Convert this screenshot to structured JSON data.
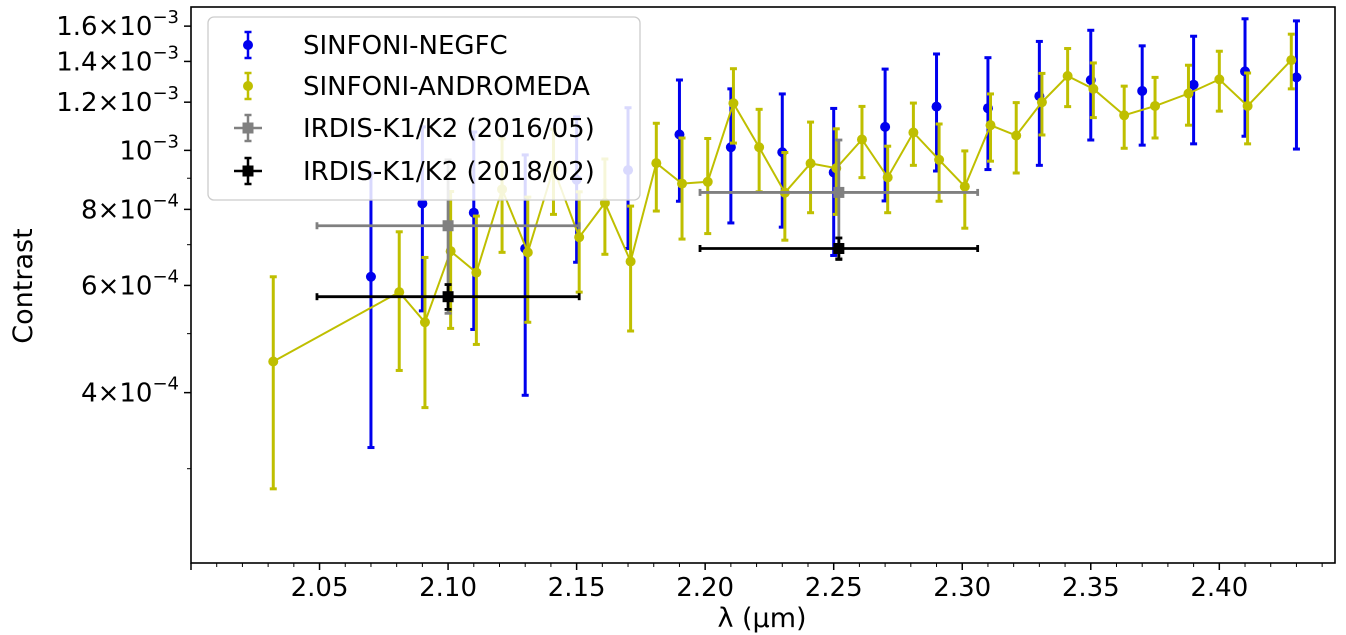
{
  "chart_data": {
    "type": "scatter",
    "xlabel": "λ (μm)",
    "ylabel": "Contrast",
    "xlim": [
      2.0,
      2.445
    ],
    "ylim": [
      0.00021,
      0.00172
    ],
    "grid": false,
    "legend_position": "top-left",
    "x_ticks": [
      {
        "value": 2.05,
        "label": "2.05"
      },
      {
        "value": 2.1,
        "label": "2.10"
      },
      {
        "value": 2.15,
        "label": "2.15"
      },
      {
        "value": 2.2,
        "label": "2.20"
      },
      {
        "value": 2.25,
        "label": "2.25"
      },
      {
        "value": 2.3,
        "label": "2.30"
      },
      {
        "value": 2.35,
        "label": "2.35"
      },
      {
        "value": 2.4,
        "label": "2.40"
      }
    ],
    "y_ticks": [
      {
        "value": 0.0004,
        "base": "4×10",
        "exp": "−4"
      },
      {
        "value": 0.0006,
        "base": "6×10",
        "exp": "−4"
      },
      {
        "value": 0.0008,
        "base": "8×10",
        "exp": "−4"
      },
      {
        "value": 0.001,
        "base": "10",
        "exp": "−3"
      },
      {
        "value": 0.0012,
        "base": "1.2×10",
        "exp": "−3"
      },
      {
        "value": 0.0014,
        "base": "1.4×10",
        "exp": "−3"
      },
      {
        "value": 0.0016,
        "base": "1.6×10",
        "exp": "−3"
      }
    ],
    "series": [
      {
        "name": "SINFONI-NEGFC",
        "color": "#0000ee",
        "marker": "circle",
        "line": false,
        "points": [
          {
            "x": 2.07,
            "y": 0.00062,
            "lo": 0.000325,
            "hi": 0.000918
          },
          {
            "x": 2.09,
            "y": 0.000818,
            "lo": 0.000545,
            "hi": 0.001093
          },
          {
            "x": 2.11,
            "y": 0.00079,
            "lo": 0.000508,
            "hi": 0.001072
          },
          {
            "x": 2.13,
            "y": 0.00069,
            "lo": 0.000396,
            "hi": 0.000983
          },
          {
            "x": 2.15,
            "y": 0.000895,
            "lo": 0.000655,
            "hi": 0.001135
          },
          {
            "x": 2.17,
            "y": 0.000928,
            "lo": 0.00069,
            "hi": 0.001175
          },
          {
            "x": 2.19,
            "y": 0.001062,
            "lo": 0.000825,
            "hi": 0.001305
          },
          {
            "x": 2.21,
            "y": 0.001012,
            "lo": 0.00076,
            "hi": 0.001262
          },
          {
            "x": 2.23,
            "y": 0.000993,
            "lo": 0.000748,
            "hi": 0.001238
          },
          {
            "x": 2.25,
            "y": 0.00092,
            "lo": 0.000672,
            "hi": 0.001172
          },
          {
            "x": 2.27,
            "y": 0.001093,
            "lo": 0.000826,
            "hi": 0.00136
          },
          {
            "x": 2.29,
            "y": 0.00118,
            "lo": 0.000925,
            "hi": 0.00144
          },
          {
            "x": 2.31,
            "y": 0.001173,
            "lo": 0.00093,
            "hi": 0.00142
          },
          {
            "x": 2.33,
            "y": 0.001228,
            "lo": 0.000945,
            "hi": 0.00151
          },
          {
            "x": 2.35,
            "y": 0.001305,
            "lo": 0.00104,
            "hi": 0.001575
          },
          {
            "x": 2.37,
            "y": 0.001252,
            "lo": 0.00102,
            "hi": 0.001485
          },
          {
            "x": 2.39,
            "y": 0.001282,
            "lo": 0.001025,
            "hi": 0.00154
          },
          {
            "x": 2.41,
            "y": 0.001348,
            "lo": 0.001055,
            "hi": 0.001645
          },
          {
            "x": 2.43,
            "y": 0.001318,
            "lo": 0.001005,
            "hi": 0.001632
          }
        ]
      },
      {
        "name": "SINFONI-ANDROMEDA",
        "color": "#bfbf00",
        "marker": "circle",
        "line": true,
        "points": [
          {
            "x": 2.032,
            "y": 0.00045,
            "lo": 0.000278,
            "hi": 0.00062
          },
          {
            "x": 2.081,
            "y": 0.000585,
            "lo": 0.000435,
            "hi": 0.000735
          },
          {
            "x": 2.091,
            "y": 0.000522,
            "lo": 0.000378,
            "hi": 0.000667
          },
          {
            "x": 2.101,
            "y": 0.000683,
            "lo": 0.00051,
            "hi": 0.000856
          },
          {
            "x": 2.111,
            "y": 0.00063,
            "lo": 0.00048,
            "hi": 0.00078
          },
          {
            "x": 2.121,
            "y": 0.000863,
            "lo": 0.00068,
            "hi": 0.001045
          },
          {
            "x": 2.131,
            "y": 0.00068,
            "lo": 0.000522,
            "hi": 0.000838
          },
          {
            "x": 2.141,
            "y": 0.000935,
            "lo": 0.000785,
            "hi": 0.001083
          },
          {
            "x": 2.151,
            "y": 0.00072,
            "lo": 0.000585,
            "hi": 0.000855
          },
          {
            "x": 2.161,
            "y": 0.00082,
            "lo": 0.000675,
            "hi": 0.000968
          },
          {
            "x": 2.171,
            "y": 0.000657,
            "lo": 0.000505,
            "hi": 0.00081
          },
          {
            "x": 2.181,
            "y": 0.000953,
            "lo": 0.000795,
            "hi": 0.001108
          },
          {
            "x": 2.191,
            "y": 0.000882,
            "lo": 0.000715,
            "hi": 0.001048
          },
          {
            "x": 2.201,
            "y": 0.000888,
            "lo": 0.00073,
            "hi": 0.001046
          },
          {
            "x": 2.211,
            "y": 0.001195,
            "lo": 0.001028,
            "hi": 0.001362
          },
          {
            "x": 2.221,
            "y": 0.001012,
            "lo": 0.000855,
            "hi": 0.001168
          },
          {
            "x": 2.231,
            "y": 0.000852,
            "lo": 0.000712,
            "hi": 0.000992
          },
          {
            "x": 2.241,
            "y": 0.000952,
            "lo": 0.00079,
            "hi": 0.001113
          },
          {
            "x": 2.251,
            "y": 0.000935,
            "lo": 0.000785,
            "hi": 0.001085
          },
          {
            "x": 2.261,
            "y": 0.001042,
            "lo": 0.000902,
            "hi": 0.001181
          },
          {
            "x": 2.271,
            "y": 0.000903,
            "lo": 0.00079,
            "hi": 0.001016
          },
          {
            "x": 2.281,
            "y": 0.00107,
            "lo": 0.000945,
            "hi": 0.001196
          },
          {
            "x": 2.291,
            "y": 0.000965,
            "lo": 0.000825,
            "hi": 0.001105
          },
          {
            "x": 2.301,
            "y": 0.000872,
            "lo": 0.000745,
            "hi": 0.000998
          },
          {
            "x": 2.311,
            "y": 0.0011,
            "lo": 0.00096,
            "hi": 0.001238
          },
          {
            "x": 2.321,
            "y": 0.001058,
            "lo": 0.000918,
            "hi": 0.001198
          },
          {
            "x": 2.331,
            "y": 0.0012,
            "lo": 0.00106,
            "hi": 0.001338
          },
          {
            "x": 2.341,
            "y": 0.001325,
            "lo": 0.00118,
            "hi": 0.00147
          },
          {
            "x": 2.351,
            "y": 0.001262,
            "lo": 0.001132,
            "hi": 0.001392
          },
          {
            "x": 2.363,
            "y": 0.001142,
            "lo": 0.001008,
            "hi": 0.001275
          },
          {
            "x": 2.375,
            "y": 0.001183,
            "lo": 0.001048,
            "hi": 0.001318
          },
          {
            "x": 2.388,
            "y": 0.00124,
            "lo": 0.0011,
            "hi": 0.00138
          },
          {
            "x": 2.4,
            "y": 0.001308,
            "lo": 0.00116,
            "hi": 0.001455
          },
          {
            "x": 2.411,
            "y": 0.001183,
            "lo": 0.001025,
            "hi": 0.00134
          },
          {
            "x": 2.428,
            "y": 0.001407,
            "lo": 0.001262,
            "hi": 0.001552
          }
        ]
      },
      {
        "name": "IRDIS-K1/K2 (2016/05)",
        "color": "#808080",
        "marker": "square",
        "line": false,
        "points": [
          {
            "x": 2.1,
            "y": 0.000752,
            "lo": 0.00054,
            "hi": 0.000965,
            "xlo": 2.049,
            "xhi": 2.151
          },
          {
            "x": 2.252,
            "y": 0.000853,
            "lo": 0.000665,
            "hi": 0.00104,
            "xlo": 2.198,
            "xhi": 2.306
          }
        ]
      },
      {
        "name": "IRDIS-K1/K2 (2018/02)",
        "color": "#000000",
        "marker": "square",
        "line": false,
        "points": [
          {
            "x": 2.1,
            "y": 0.000575,
            "lo": 0.000548,
            "hi": 0.000602,
            "xlo": 2.049,
            "xhi": 2.151
          },
          {
            "x": 2.252,
            "y": 0.00069,
            "lo": 0.000662,
            "hi": 0.000718,
            "xlo": 2.198,
            "xhi": 2.306
          }
        ]
      }
    ]
  }
}
